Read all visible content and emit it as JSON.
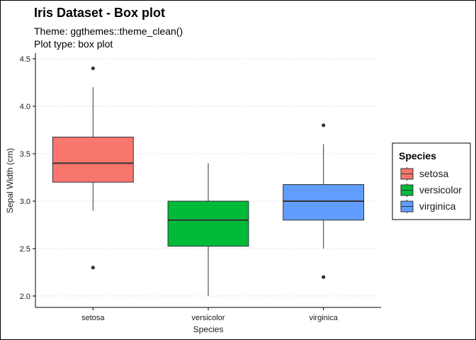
{
  "chart_data": {
    "type": "box",
    "title": "Iris Dataset - Box plot",
    "subtitle_lines": [
      "Theme: ggthemes::theme_clean()",
      "Plot type: box plot"
    ],
    "xlabel": "Species",
    "ylabel": "Sepal Width (cm)",
    "ylim": [
      1.88,
      4.56
    ],
    "yticks": [
      "2.0",
      "2.5",
      "3.0",
      "3.5",
      "4.0",
      "4.5"
    ],
    "ytick_values": [
      2.0,
      2.5,
      3.0,
      3.5,
      4.0,
      4.5
    ],
    "grid": "horizontal dotted",
    "legend": {
      "title": "Species",
      "position": "right",
      "entries": [
        "setosa",
        "versicolor",
        "virginica"
      ]
    },
    "categories": [
      "setosa",
      "versicolor",
      "virginica"
    ],
    "series": [
      {
        "name": "setosa",
        "color": "#F8766D",
        "whisker_low": 2.9,
        "q1": 3.2,
        "median": 3.4,
        "q3": 3.675,
        "whisker_high": 4.2,
        "outliers": [
          4.4,
          2.3
        ]
      },
      {
        "name": "versicolor",
        "color": "#00BA38",
        "whisker_low": 2.0,
        "q1": 2.525,
        "median": 2.8,
        "q3": 3.0,
        "whisker_high": 3.4,
        "outliers": []
      },
      {
        "name": "virginica",
        "color": "#619CFF",
        "whisker_low": 2.5,
        "q1": 2.8,
        "median": 3.0,
        "q3": 3.175,
        "whisker_high": 3.6,
        "outliers": [
          3.8,
          2.2
        ]
      }
    ]
  }
}
